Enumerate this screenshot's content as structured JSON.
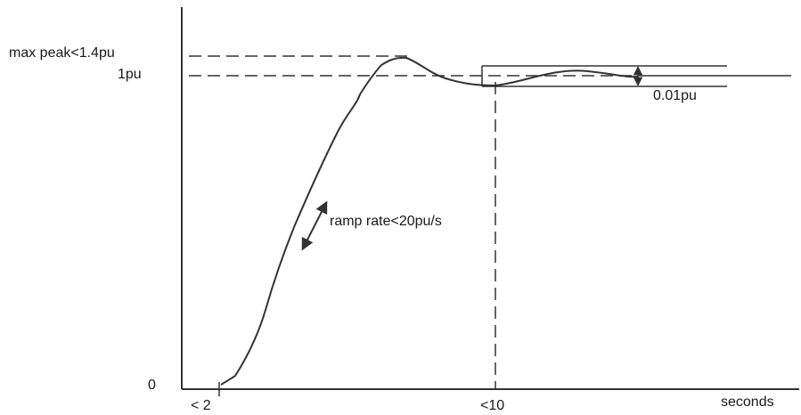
{
  "labels": {
    "max_peak": "max peak<1.4pu",
    "one_pu": "1pu",
    "zero": "0",
    "t_start": "< 2",
    "t_settle": "<10",
    "x_unit": "seconds",
    "ramp_rate": "ramp rate<20pu/s",
    "band": "0.01pu"
  },
  "colors": {
    "stroke": "#333333",
    "text": "#1a1a1a"
  }
}
